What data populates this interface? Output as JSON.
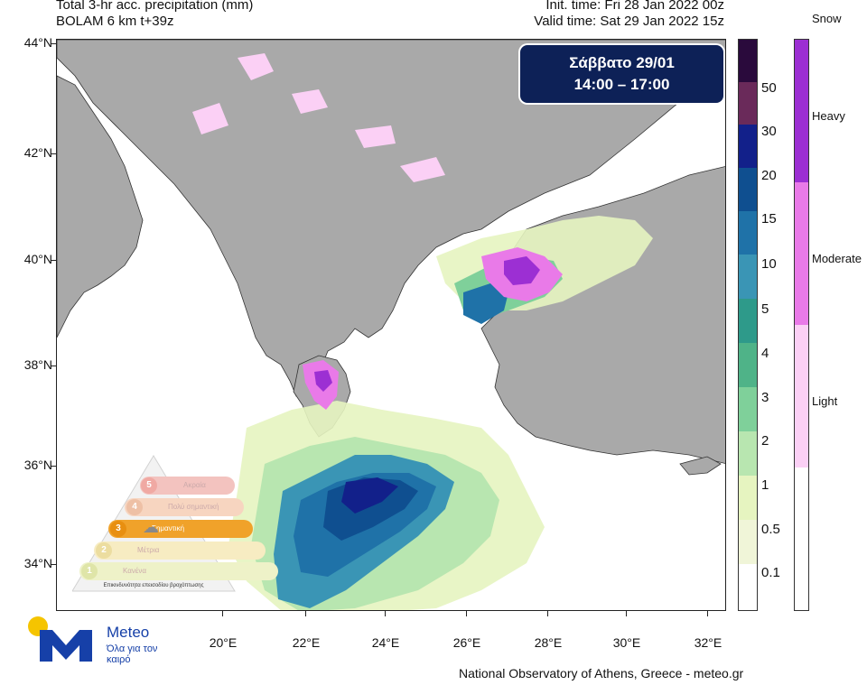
{
  "header": {
    "title_line1": "Total 3-hr acc. precipitation (mm)",
    "title_line2": "BOLAM 6 km t+39z",
    "init_time": "Init. time: Fri 28 Jan 2022 00z",
    "valid_time": "Valid time: Sat 29 Jan 2022 15z"
  },
  "date_box": {
    "day_label": "Σάββατο 29/01",
    "time_range": "14:00 – 17:00"
  },
  "map": {
    "lat_labels": [
      "44°N",
      "42°N",
      "40°N",
      "38°N",
      "36°N",
      "34°N"
    ],
    "lon_labels": [
      "20°E",
      "22°E",
      "24°E",
      "26°E",
      "28°E",
      "30°E",
      "32°E"
    ],
    "land_color": "#a9a9a9",
    "sea_color": "#ffffff"
  },
  "precip_scale": {
    "labels": [
      "50",
      "30",
      "20",
      "15",
      "10",
      "5",
      "4",
      "3",
      "2",
      "1",
      "0.5",
      "0.1"
    ],
    "colors": [
      "#2a0a3c",
      "#6a2a5a",
      "#12208a",
      "#0f4f90",
      "#1f72a8",
      "#3a95b5",
      "#2e9a8a",
      "#4fb388",
      "#7fd09a",
      "#b8e6b0",
      "#e6f4c0",
      "#f0f5d8",
      "#ffffff"
    ]
  },
  "snow_scale": {
    "title": "Snow",
    "labels": [
      "Heavy",
      "Moderate",
      "Light"
    ],
    "colors": [
      "#9c2fd3",
      "#e97ae8",
      "#fbd0f5",
      "#ffffff"
    ]
  },
  "warning_pyramid": {
    "levels": [
      {
        "num": "5",
        "label": "Ακραία",
        "color": "#f3c3bf",
        "active": false
      },
      {
        "num": "4",
        "label": "Πολύ σημαντική",
        "color": "#f7d5c0",
        "active": false
      },
      {
        "num": "3",
        "label": "Σημαντική",
        "color": "#f0a22a",
        "active": true
      },
      {
        "num": "2",
        "label": "Μέτρια",
        "color": "#f7ecc2",
        "active": false
      },
      {
        "num": "1",
        "label": "Κανένα",
        "color": "#eef2c8",
        "active": false
      }
    ],
    "caption": "Επικινδυνότητα επεισοδίου βροχόπτωσης"
  },
  "logo": {
    "name": "Meteo",
    "slogan": "Όλα για τον καιρό"
  },
  "footer": {
    "credit": "National Observatory of Athens, Greece - meteo.gr"
  }
}
